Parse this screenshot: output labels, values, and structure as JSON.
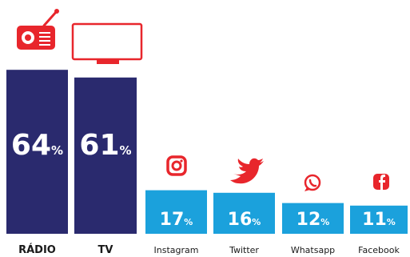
{
  "chart_data": {
    "type": "bar",
    "categories": [
      "RÁDIO",
      "TV",
      "Instagram",
      "Twitter",
      "Whatsapp",
      "Facebook"
    ],
    "values": [
      64,
      61,
      17,
      16,
      12,
      11
    ],
    "value_labels": [
      "64",
      "61",
      "17",
      "16",
      "12",
      "11"
    ],
    "value_suffix": "%",
    "ylim": [
      0,
      70
    ],
    "grid": false,
    "legend": "none",
    "icons": [
      "radio-icon",
      "tv-icon",
      "instagram-icon",
      "twitter-icon",
      "whatsapp-icon",
      "facebook-icon"
    ],
    "colors": {
      "traditional": "#2a2a6e",
      "social": "#1ba1dc",
      "icon": "#e8262c"
    }
  }
}
